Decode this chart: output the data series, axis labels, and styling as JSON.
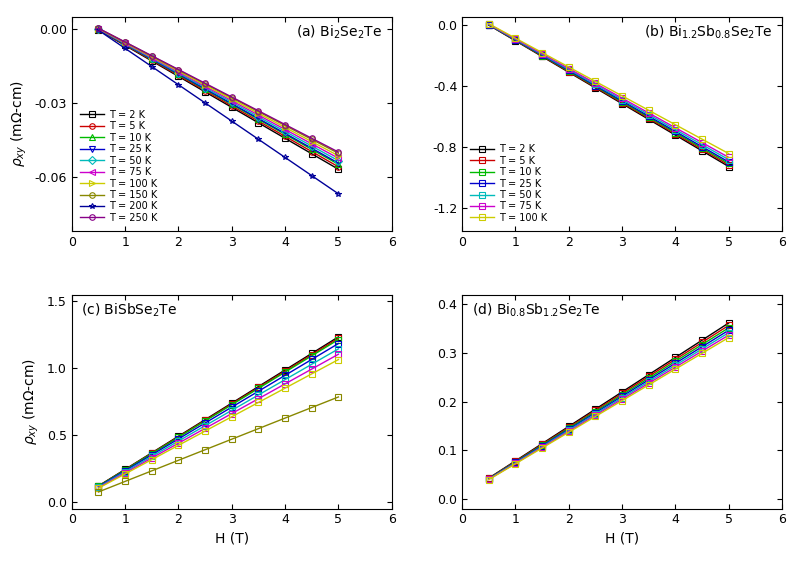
{
  "panels": [
    {
      "label": "(a) Bi$_2$Se$_2$Te",
      "label_pos": "upper right",
      "xlim": [
        0,
        6
      ],
      "ylim": [
        -0.082,
        0.005
      ],
      "yticks": [
        0.0,
        -0.03,
        -0.06
      ],
      "yticklabels": [
        "0.00",
        "-0.03",
        "-0.06"
      ],
      "ylabel": true,
      "xlabel": false,
      "legend": true,
      "legend_idx": 0,
      "H_vals": [
        0.5,
        1.0,
        1.5,
        2.0,
        2.5,
        3.0,
        3.5,
        4.0,
        4.5,
        5.0
      ],
      "temperatures": [
        2,
        5,
        10,
        25,
        50,
        75,
        100,
        150,
        200,
        250
      ],
      "colors": [
        "black",
        "#cc0000",
        "#00bb00",
        "#0000cc",
        "#00bbbb",
        "#cc00cc",
        "#cccc00",
        "#888800",
        "#000099",
        "#880088"
      ],
      "markers": [
        "s",
        "o",
        "^",
        "v",
        "D",
        "<",
        ">",
        "o",
        "*",
        "o"
      ],
      "slopes": [
        -0.0126,
        -0.0124,
        -0.0122,
        -0.0121,
        -0.0119,
        -0.0117,
        -0.0115,
        -0.0113,
        -0.0148,
        -0.0112
      ],
      "intercepts": [
        0.006,
        0.006,
        0.006,
        0.006,
        0.006,
        0.006,
        0.006,
        0.006,
        0.007,
        0.006
      ]
    },
    {
      "label": "(b) Bi$_{1.2}$Sb$_{0.8}$Se$_2$Te",
      "label_pos": "upper right",
      "xlim": [
        0,
        6
      ],
      "ylim": [
        -1.35,
        0.05
      ],
      "yticks": [
        0.0,
        -0.4,
        -0.8,
        -1.2
      ],
      "yticklabels": [
        "0.0",
        "-0.4",
        "-0.8",
        "-1.2"
      ],
      "ylabel": false,
      "xlabel": false,
      "legend": true,
      "legend_idx": 1,
      "H_vals": [
        0.5,
        1.0,
        1.5,
        2.0,
        2.5,
        3.0,
        3.5,
        4.0,
        4.5,
        5.0
      ],
      "temperatures": [
        2,
        5,
        10,
        25,
        50,
        75,
        100
      ],
      "colors": [
        "black",
        "#cc0000",
        "#00bb00",
        "#0000cc",
        "#00bbbb",
        "#cc00cc",
        "#cccc00"
      ],
      "markers": [
        "s",
        "s",
        "s",
        "s",
        "s",
        "s",
        "s"
      ],
      "slopes": [
        -0.206,
        -0.204,
        -0.202,
        -0.2,
        -0.197,
        -0.194,
        -0.189
      ],
      "intercepts": [
        0.1,
        0.1,
        0.1,
        0.1,
        0.1,
        0.1,
        0.1
      ]
    },
    {
      "label": "(c) BiSbSe$_2$Te",
      "label_pos": "upper left",
      "xlim": [
        0,
        6
      ],
      "ylim": [
        -0.05,
        1.55
      ],
      "yticks": [
        0.0,
        0.5,
        1.0,
        1.5
      ],
      "yticklabels": [
        "0.0",
        "0.5",
        "1.0",
        "1.5"
      ],
      "ylabel": true,
      "xlabel": true,
      "legend": false,
      "legend_idx": -1,
      "H_vals": [
        0.5,
        1.0,
        1.5,
        2.0,
        2.5,
        3.0,
        3.5,
        4.0,
        4.5,
        5.0
      ],
      "temperatures": [
        2,
        5,
        10,
        25,
        50,
        75,
        100,
        150
      ],
      "colors": [
        "black",
        "#cc0000",
        "#00bb00",
        "#0000cc",
        "#00bbbb",
        "#cc00cc",
        "#cccc00",
        "#888800"
      ],
      "markers": [
        "s",
        "s",
        "s",
        "s",
        "s",
        "s",
        "s",
        "s"
      ],
      "slopes": [
        0.248,
        0.246,
        0.244,
        0.238,
        0.23,
        0.222,
        0.214,
        0.158
      ],
      "intercepts": [
        -0.005,
        -0.005,
        -0.005,
        -0.005,
        -0.005,
        -0.005,
        -0.005,
        -0.005
      ]
    },
    {
      "label": "(d) Bi$_{0.8}$Sb$_{1.2}$Se$_2$Te",
      "label_pos": "upper left",
      "xlim": [
        0,
        6
      ],
      "ylim": [
        -0.02,
        0.42
      ],
      "yticks": [
        0.0,
        0.1,
        0.2,
        0.3,
        0.4
      ],
      "yticklabels": [
        "0.0",
        "0.1",
        "0.2",
        "0.3",
        "0.4"
      ],
      "ylabel": false,
      "xlabel": true,
      "legend": false,
      "legend_idx": -1,
      "H_vals": [
        0.5,
        1.0,
        1.5,
        2.0,
        2.5,
        3.0,
        3.5,
        4.0,
        4.5,
        5.0
      ],
      "temperatures": [
        2,
        5,
        10,
        25,
        50,
        75,
        100
      ],
      "colors": [
        "black",
        "#cc0000",
        "#00bb00",
        "#0000cc",
        "#00bbbb",
        "#cc00cc",
        "#cccc00"
      ],
      "markers": [
        "s",
        "s",
        "s",
        "s",
        "s",
        "s",
        "s"
      ],
      "slopes": [
        0.071,
        0.07,
        0.069,
        0.068,
        0.067,
        0.066,
        0.065
      ],
      "intercepts": [
        0.007,
        0.007,
        0.007,
        0.007,
        0.007,
        0.007,
        0.007
      ]
    }
  ],
  "xlabel": "H (T)",
  "ylabel_tex": "$\\rho_{xy}$ (m$\\Omega$-cm)"
}
